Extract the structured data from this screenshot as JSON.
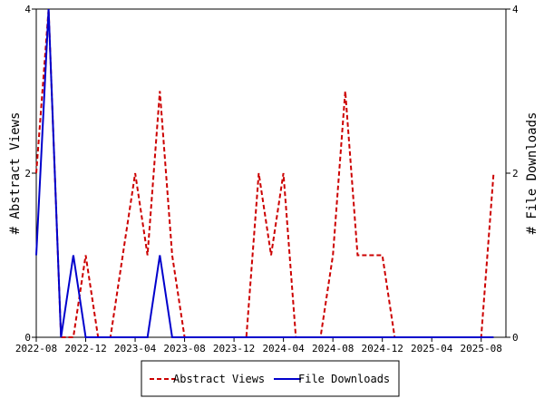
{
  "chart_data": {
    "type": "line",
    "title": "",
    "xlabel": "",
    "ylabel": "# Abstract Views",
    "y2label": "# File Downloads",
    "ylim": [
      0,
      4
    ],
    "y2lim": [
      0,
      4
    ],
    "yticks": [
      "0",
      "2",
      "4"
    ],
    "y2ticks": [
      "0",
      "2",
      "4"
    ],
    "x_range": [
      "2022-08",
      "2025-10"
    ],
    "x_ticks": [
      "2022-08",
      "2022-12",
      "2023-04",
      "2023-08",
      "2023-12",
      "2024-04",
      "2024-08",
      "2024-12",
      "2025-04",
      "2025-08"
    ],
    "grid": false,
    "legend_position": "bottom",
    "series": [
      {
        "name": "Abstract Views",
        "color": "#cc0000",
        "style": "dashed",
        "points": [
          [
            "2022-08",
            2
          ],
          [
            "2022-09",
            4
          ],
          [
            "2022-10",
            0
          ],
          [
            "2022-11",
            0
          ],
          [
            "2022-12",
            1
          ],
          [
            "2023-01",
            0
          ],
          [
            "2023-02",
            0
          ],
          [
            "2023-03",
            1
          ],
          [
            "2023-04",
            2
          ],
          [
            "2023-05",
            1
          ],
          [
            "2023-06",
            3
          ],
          [
            "2023-07",
            1
          ],
          [
            "2023-08",
            0
          ],
          [
            "2023-09",
            0
          ],
          [
            "2023-10",
            0
          ],
          [
            "2023-11",
            0
          ],
          [
            "2023-12",
            0
          ],
          [
            "2024-01",
            0
          ],
          [
            "2024-02",
            2
          ],
          [
            "2024-03",
            1
          ],
          [
            "2024-04",
            2
          ],
          [
            "2024-05",
            0
          ],
          [
            "2024-06",
            0
          ],
          [
            "2024-07",
            0
          ],
          [
            "2024-08",
            1
          ],
          [
            "2024-09",
            3
          ],
          [
            "2024-10",
            1
          ],
          [
            "2024-11",
            1
          ],
          [
            "2024-12",
            1
          ],
          [
            "2025-01",
            0
          ],
          [
            "2025-02",
            0
          ],
          [
            "2025-03",
            0
          ],
          [
            "2025-04",
            0
          ],
          [
            "2025-05",
            0
          ],
          [
            "2025-06",
            0
          ],
          [
            "2025-07",
            0
          ],
          [
            "2025-08",
            0
          ],
          [
            "2025-09",
            2
          ]
        ]
      },
      {
        "name": "File Downloads",
        "color": "#0000cc",
        "style": "solid",
        "points": [
          [
            "2022-08",
            1
          ],
          [
            "2022-09",
            4
          ],
          [
            "2022-10",
            0
          ],
          [
            "2022-11",
            1
          ],
          [
            "2022-12",
            0
          ],
          [
            "2023-01",
            0
          ],
          [
            "2023-02",
            0
          ],
          [
            "2023-03",
            0
          ],
          [
            "2023-04",
            0
          ],
          [
            "2023-05",
            0
          ],
          [
            "2023-06",
            1
          ],
          [
            "2023-07",
            0
          ],
          [
            "2023-08",
            0
          ],
          [
            "2023-09",
            0
          ],
          [
            "2023-10",
            0
          ],
          [
            "2023-11",
            0
          ],
          [
            "2023-12",
            0
          ],
          [
            "2024-01",
            0
          ],
          [
            "2024-02",
            0
          ],
          [
            "2024-03",
            0
          ],
          [
            "2024-04",
            0
          ],
          [
            "2024-05",
            0
          ],
          [
            "2024-06",
            0
          ],
          [
            "2024-07",
            0
          ],
          [
            "2024-08",
            0
          ],
          [
            "2024-09",
            0
          ],
          [
            "2024-10",
            0
          ],
          [
            "2024-11",
            0
          ],
          [
            "2024-12",
            0
          ],
          [
            "2025-01",
            0
          ],
          [
            "2025-02",
            0
          ],
          [
            "2025-03",
            0
          ],
          [
            "2025-04",
            0
          ],
          [
            "2025-05",
            0
          ],
          [
            "2025-06",
            0
          ],
          [
            "2025-07",
            0
          ],
          [
            "2025-08",
            0
          ],
          [
            "2025-09",
            0
          ]
        ]
      }
    ]
  }
}
